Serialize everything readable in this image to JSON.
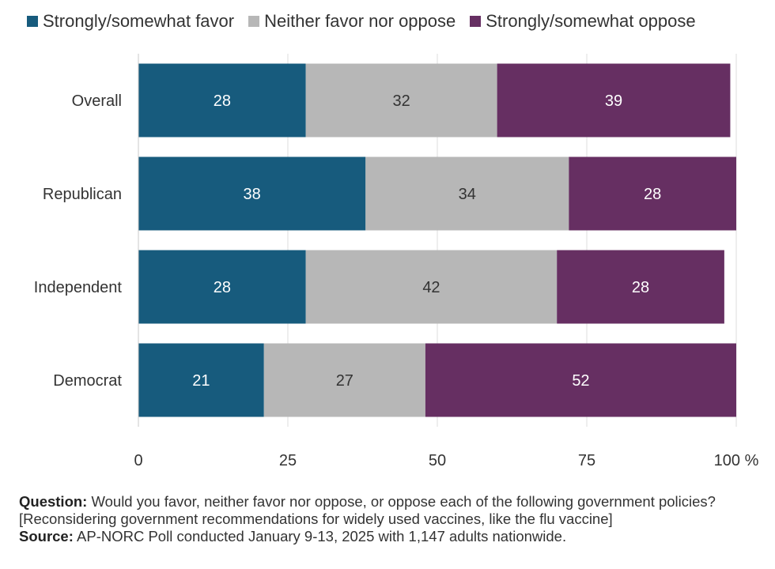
{
  "chart_data": {
    "type": "bar",
    "orientation": "horizontal",
    "stacked": true,
    "categories": [
      "Overall",
      "Republican",
      "Independent",
      "Democrat"
    ],
    "series": [
      {
        "name": "Strongly/somewhat favor",
        "values": [
          28,
          38,
          28,
          21
        ],
        "color": "#175b7d"
      },
      {
        "name": "Neither favor nor oppose",
        "values": [
          32,
          34,
          42,
          27
        ],
        "color": "#b7b7b7"
      },
      {
        "name": "Strongly/somewhat oppose",
        "values": [
          39,
          28,
          28,
          52
        ],
        "color": "#662f62"
      }
    ],
    "xlim": [
      0,
      100
    ],
    "xticks": [
      "0",
      "25",
      "50",
      "75",
      "100 %"
    ],
    "grid": true,
    "legend": "top"
  },
  "notes": {
    "question_label": "Question:",
    "question_text": " Would you favor, neither favor nor oppose, or oppose each of the following government policies? [Reconsidering government recommendations for widely used vaccines, like the flu vaccine]",
    "source_label": "Source:",
    "source_text": " AP-NORC Poll conducted January 9-13, 2025 with 1,147 adults nationwide."
  }
}
